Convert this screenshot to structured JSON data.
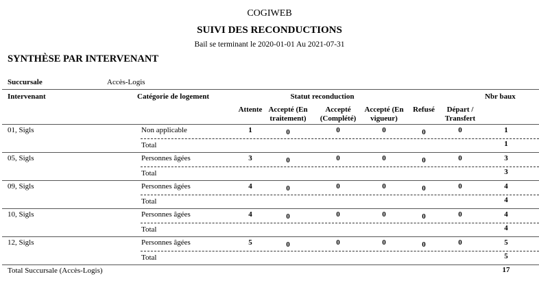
{
  "header": {
    "company": "COGIWEB",
    "title": "SUIVI DES RECONDUCTIONS",
    "subtitle": "Bail se terminant le 2020-01-01 Au 2021-07-31",
    "section": "SYNTHÈSE PAR INTERVENANT"
  },
  "branch": {
    "label": "Succursale",
    "value": "Accès-Logis"
  },
  "columns": {
    "intervenant": "Intervenant",
    "categorie": "Catégorie de logement",
    "statut": "Statut reconduction",
    "nbr": "Nbr baux",
    "statuses": [
      [
        "Attente",
        ""
      ],
      [
        "Accepté (En",
        "traitement)"
      ],
      [
        "Accepté",
        "(Complété)"
      ],
      [
        "Accepté (En",
        "vigueur)"
      ],
      [
        "Refusé",
        ""
      ],
      [
        "Départ /",
        "Transfert"
      ]
    ]
  },
  "rows": [
    {
      "intervenant": "01, Sigls",
      "categorie": "Non applicable",
      "values": [
        "1",
        "0",
        "0",
        "0",
        "0",
        "0"
      ],
      "nbr": "1",
      "total_label": "Total",
      "total": "1"
    },
    {
      "intervenant": "05, Sigls",
      "categorie": "Personnes âgées",
      "values": [
        "3",
        "0",
        "0",
        "0",
        "0",
        "0"
      ],
      "nbr": "3",
      "total_label": "Total",
      "total": "3"
    },
    {
      "intervenant": "09, Sigls",
      "categorie": "Personnes âgées",
      "values": [
        "4",
        "0",
        "0",
        "0",
        "0",
        "0"
      ],
      "nbr": "4",
      "total_label": "Total",
      "total": "4"
    },
    {
      "intervenant": "10, Sigls",
      "categorie": "Personnes âgées",
      "values": [
        "4",
        "0",
        "0",
        "0",
        "0",
        "0"
      ],
      "nbr": "4",
      "total_label": "Total",
      "total": "4"
    },
    {
      "intervenant": "12, Sigls",
      "categorie": "Personnes âgées",
      "values": [
        "5",
        "0",
        "0",
        "0",
        "0",
        "0"
      ],
      "nbr": "5",
      "total_label": "Total",
      "total": "5"
    }
  ],
  "grand_total": {
    "label": "Total Succursale (Accès-Logis)",
    "value": "17"
  }
}
